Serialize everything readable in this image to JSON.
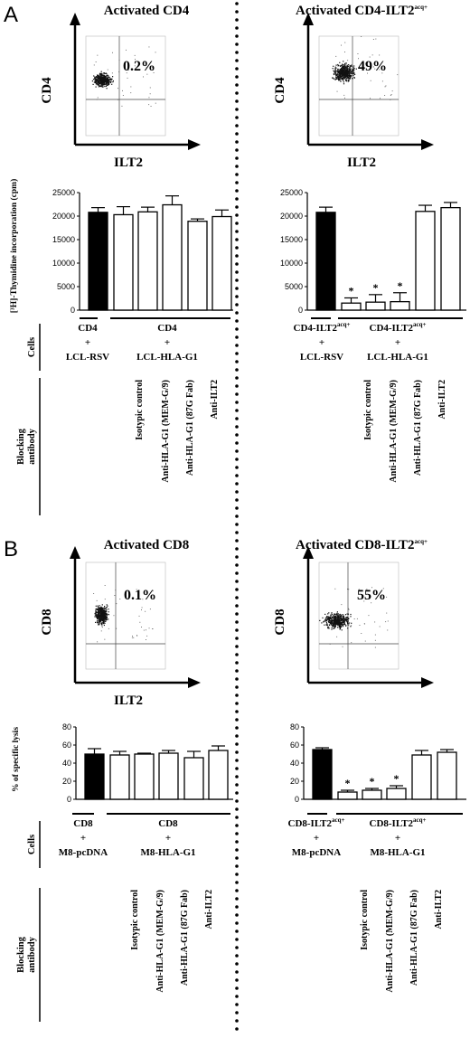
{
  "panels": {
    "A": {
      "label": "A",
      "left_title": "Activated CD4",
      "right_title": "Activated CD4-ILT2",
      "right_title_sup": "acq+",
      "flow_y_label": "CD4",
      "flow_x_label": "ILT2",
      "left_pct": "0.2%",
      "right_pct": "49%",
      "y_label": "[³H]-Thymidine incorporation (cpm)",
      "cells_label": "Cells",
      "blocking_label": "Blocking antibody",
      "left_groups": [
        {
          "lines": [
            "CD4",
            "+",
            "LCL-RSV"
          ]
        },
        {
          "lines": [
            "CD4",
            "+",
            "LCL-HLA-G1"
          ]
        }
      ],
      "right_groups": [
        {
          "lines": [
            "CD4-ILT2",
            "+",
            "LCL-RSV"
          ],
          "sup": "acq+"
        },
        {
          "lines": [
            "CD4-ILT2",
            "+",
            "LCL-HLA-G1"
          ],
          "sup": "acq+"
        }
      ]
    },
    "B": {
      "label": "B",
      "left_title": "Activated CD8",
      "right_title": "Activated CD8-ILT2",
      "right_title_sup": "acq+",
      "flow_y_label": "CD8",
      "flow_x_label": "ILT2",
      "left_pct": "0.1%",
      "right_pct": "55%",
      "y_label": "% of specific lysis",
      "cells_label": "Cells",
      "blocking_label": "Blocking antibody",
      "left_groups": [
        {
          "lines": [
            "CD8",
            "+",
            "M8-pcDNA"
          ]
        },
        {
          "lines": [
            "CD8",
            "+",
            "M8-HLA-G1"
          ]
        }
      ],
      "right_groups": [
        {
          "lines": [
            "CD8-ILT2",
            "+",
            "M8-pcDNA"
          ],
          "sup": "acq+"
        },
        {
          "lines": [
            "CD8-ILT2",
            "+",
            "M8-HLA-G1"
          ],
          "sup": "acq+"
        }
      ]
    }
  },
  "antibodies": [
    "Isotypic control",
    "Anti-HLA-G1 (MEM-G/9)",
    "Anti-HLA-G1 (87G Fab)",
    "Anti-ILT2"
  ],
  "colors": {
    "filled_bar": "#000000",
    "open_bar": "#ffffff",
    "axis": "#000000"
  },
  "chart_data": [
    {
      "type": "bar",
      "panel": "A",
      "side": "left",
      "ylabel": "[³H]-Thymidine incorporation (cpm)",
      "ylim": [
        0,
        25000
      ],
      "yticks": [
        0,
        5000,
        10000,
        15000,
        20000,
        25000
      ],
      "values": [
        20800,
        20300,
        20900,
        22400,
        18900,
        19900
      ],
      "errors": [
        1000,
        1700,
        1000,
        1900,
        500,
        1400
      ],
      "filled": [
        true,
        false,
        false,
        false,
        false,
        false
      ],
      "significant": [
        false,
        false,
        false,
        false,
        false,
        false
      ]
    },
    {
      "type": "bar",
      "panel": "A",
      "side": "right",
      "ylabel": "",
      "ylim": [
        0,
        25000
      ],
      "yticks": [
        0,
        5000,
        10000,
        15000,
        20000,
        25000
      ],
      "values": [
        20800,
        1500,
        1700,
        1800,
        21000,
        21800
      ],
      "errors": [
        1100,
        1100,
        1600,
        1900,
        1300,
        1100
      ],
      "filled": [
        true,
        false,
        false,
        false,
        false,
        false
      ],
      "significant": [
        false,
        true,
        true,
        true,
        false,
        false
      ]
    },
    {
      "type": "bar",
      "panel": "B",
      "side": "left",
      "ylabel": "% of specific lysis",
      "ylim": [
        0,
        80
      ],
      "yticks": [
        0,
        20,
        40,
        60,
        80
      ],
      "values": [
        50,
        49,
        50,
        51,
        46,
        54
      ],
      "errors": [
        6,
        4,
        1,
        3,
        7,
        5
      ],
      "filled": [
        true,
        false,
        false,
        false,
        false,
        false
      ],
      "significant": [
        false,
        false,
        false,
        false,
        false,
        false
      ]
    },
    {
      "type": "bar",
      "panel": "B",
      "side": "right",
      "ylabel": "",
      "ylim": [
        0,
        80
      ],
      "yticks": [
        0,
        20,
        40,
        60,
        80
      ],
      "values": [
        55,
        8,
        10,
        12,
        49,
        52
      ],
      "errors": [
        2,
        2,
        2,
        3,
        5,
        3
      ],
      "filled": [
        true,
        false,
        false,
        false,
        false,
        false
      ],
      "significant": [
        false,
        true,
        true,
        true,
        false,
        false
      ]
    }
  ]
}
